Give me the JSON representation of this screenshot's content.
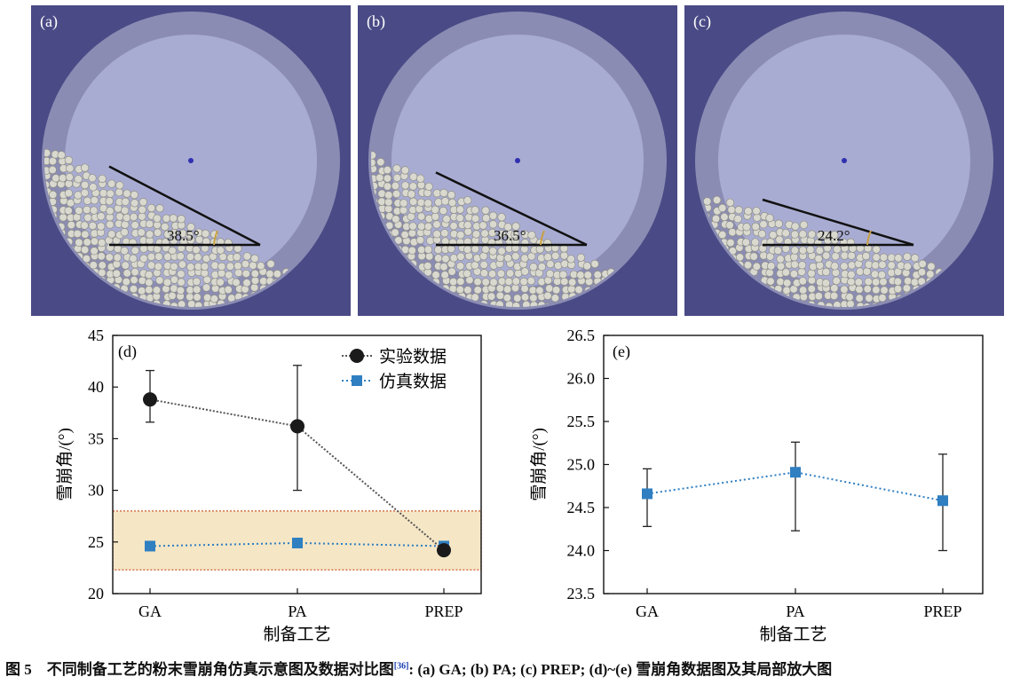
{
  "panels": [
    {
      "label": "(a)",
      "angle": "38.5°"
    },
    {
      "label": "(b)",
      "angle": "36.5°"
    },
    {
      "label": "(c)",
      "angle": "24.2°"
    }
  ],
  "chart_data": [
    {
      "type": "scatter",
      "panel_label": "(d)",
      "categories": [
        "GA",
        "PA",
        "PREP"
      ],
      "xlabel": "制备工艺",
      "ylabel": "雪崩角/(°)",
      "ylim": [
        20,
        45
      ],
      "yticks": [
        20,
        25,
        30,
        35,
        40,
        45
      ],
      "legend_position": "top-right",
      "highlight_band": [
        22.3,
        28.0
      ],
      "series": [
        {
          "name": "实验数据",
          "marker": "circle",
          "color": "#1a1a1a",
          "values": [
            38.8,
            36.2,
            24.2
          ],
          "error_low": [
            36.6,
            30.0,
            24.2
          ],
          "error_high": [
            41.6,
            42.1,
            24.2
          ]
        },
        {
          "name": "仿真数据",
          "marker": "square",
          "color": "#2f7fc1",
          "values": [
            24.6,
            24.9,
            24.6
          ]
        }
      ]
    },
    {
      "type": "scatter",
      "panel_label": "(e)",
      "categories": [
        "GA",
        "PA",
        "PREP"
      ],
      "xlabel": "制备工艺",
      "ylabel": "雪崩角/(°)",
      "ylim": [
        23.5,
        26.5
      ],
      "yticks": [
        "23.5",
        "24.0",
        "24.5",
        "25.0",
        "25.5",
        "26.0",
        "26.5"
      ],
      "series": [
        {
          "marker": "square",
          "color": "#2f7fc1",
          "values": [
            24.66,
            24.91,
            24.58
          ],
          "error_low": [
            24.28,
            24.23,
            24.0
          ],
          "error_high": [
            24.95,
            25.26,
            25.12
          ]
        }
      ]
    }
  ],
  "caption": {
    "prefix": "图 5　不同制备工艺的粉末雪崩角仿真示意图及数据对比图",
    "ref": "[36]",
    "suffix": ": (a) GA; (b) PA; (c) PREP; (d)~(e) 雪崩角数据图及其局部放大图"
  }
}
